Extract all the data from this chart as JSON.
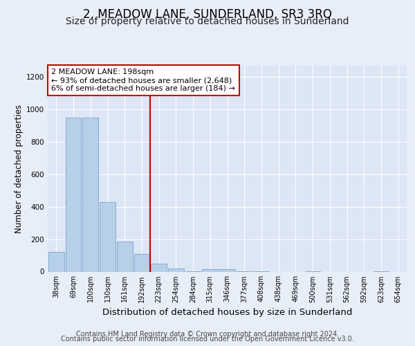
{
  "title": "2, MEADOW LANE, SUNDERLAND, SR3 3RQ",
  "subtitle": "Size of property relative to detached houses in Sunderland",
  "xlabel": "Distribution of detached houses by size in Sunderland",
  "ylabel": "Number of detached properties",
  "bar_labels": [
    "38sqm",
    "69sqm",
    "100sqm",
    "130sqm",
    "161sqm",
    "192sqm",
    "223sqm",
    "254sqm",
    "284sqm",
    "315sqm",
    "346sqm",
    "377sqm",
    "408sqm",
    "438sqm",
    "469sqm",
    "500sqm",
    "531sqm",
    "562sqm",
    "592sqm",
    "623sqm",
    "654sqm"
  ],
  "bar_values": [
    120,
    950,
    950,
    430,
    185,
    110,
    50,
    20,
    2,
    15,
    15,
    2,
    2,
    0,
    0,
    2,
    0,
    0,
    0,
    2,
    0
  ],
  "bar_color": "#b8cfe8",
  "bar_edge_color": "#6699cc",
  "vline_x": 5.5,
  "vline_color": "#cc0000",
  "annotation_text": "2 MEADOW LANE: 198sqm\n← 93% of detached houses are smaller (2,648)\n6% of semi-detached houses are larger (184) →",
  "annotation_box_facecolor": "#ffffff",
  "annotation_box_edgecolor": "#cc0000",
  "ylim": [
    0,
    1270
  ],
  "yticks": [
    0,
    200,
    400,
    600,
    800,
    1000,
    1200
  ],
  "background_color": "#e8eef8",
  "axes_background": "#dce6f5",
  "footer_line1": "Contains HM Land Registry data © Crown copyright and database right 2024.",
  "footer_line2": "Contains public sector information licensed under the Open Government Licence v3.0.",
  "title_fontsize": 12,
  "subtitle_fontsize": 10,
  "xlabel_fontsize": 9.5,
  "ylabel_fontsize": 8.5,
  "tick_fontsize": 7,
  "annotation_fontsize": 8,
  "footer_fontsize": 7
}
